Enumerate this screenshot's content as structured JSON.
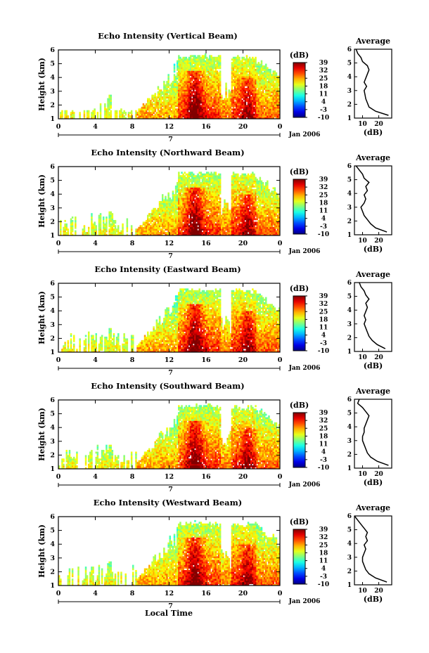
{
  "figure": {
    "y_axis_label": "Height (km)",
    "x_axis_label": "Local Time",
    "date_label": "Jan 2006",
    "day_label": "7",
    "colorbar_unit": "(dB)",
    "average_title": "Average",
    "average_xlabel": "(dB)"
  },
  "chart_data": [
    {
      "type": "heatmap",
      "title": "Echo Intensity (Vertical Beam)",
      "x_ticks": [
        "0",
        "4",
        "8",
        "12",
        "16",
        "20",
        "0"
      ],
      "x_range": [
        0,
        24
      ],
      "y_ticks": [
        "1",
        "2",
        "3",
        "4",
        "5",
        "6"
      ],
      "ylim": [
        1,
        6
      ],
      "colorbar_ticks": [
        "-10",
        "-3",
        "4",
        "11",
        "18",
        "25",
        "32",
        "39"
      ],
      "average_profile": {
        "xlim": [
          5,
          28
        ],
        "x_ticks": [
          "10",
          "20"
        ],
        "height_km": [
          1.2,
          1.5,
          1.8,
          2.1,
          2.4,
          2.7,
          3.0,
          3.3,
          3.6,
          3.9,
          4.2,
          4.5,
          4.8,
          5.1,
          5.4,
          5.7,
          6.0
        ],
        "avg_db": [
          26,
          18,
          14,
          13,
          12,
          11.5,
          11,
          12.5,
          11,
          12,
          13,
          14,
          13,
          10,
          9,
          7,
          6
        ]
      }
    },
    {
      "type": "heatmap",
      "title": "Echo Intensity (Northward Beam)",
      "x_ticks": [
        "0",
        "4",
        "8",
        "12",
        "16",
        "20",
        "0"
      ],
      "x_range": [
        0,
        24
      ],
      "y_ticks": [
        "1",
        "2",
        "3",
        "4",
        "5",
        "6"
      ],
      "ylim": [
        1,
        6
      ],
      "colorbar_ticks": [
        "-10",
        "-3",
        "4",
        "11",
        "18",
        "25",
        "32",
        "39"
      ],
      "average_profile": {
        "xlim": [
          5,
          28
        ],
        "x_ticks": [
          "10",
          "20"
        ],
        "height_km": [
          1.2,
          1.5,
          1.8,
          2.1,
          2.4,
          2.7,
          3.0,
          3.3,
          3.6,
          3.9,
          4.2,
          4.5,
          4.8,
          5.1,
          5.4,
          5.7,
          6.0
        ],
        "avg_db": [
          25,
          18,
          15,
          13,
          11,
          10,
          9,
          11,
          12,
          11,
          13,
          12,
          14,
          11,
          10,
          8,
          6
        ]
      }
    },
    {
      "type": "heatmap",
      "title": "Echo Intensity (Eastward Beam)",
      "x_ticks": [
        "0",
        "4",
        "8",
        "12",
        "16",
        "20",
        "0"
      ],
      "x_range": [
        0,
        24
      ],
      "y_ticks": [
        "1",
        "2",
        "3",
        "4",
        "5",
        "6"
      ],
      "ylim": [
        1,
        6
      ],
      "colorbar_ticks": [
        "-10",
        "-3",
        "4",
        "11",
        "18",
        "25",
        "32",
        "39"
      ],
      "average_profile": {
        "xlim": [
          5,
          28
        ],
        "x_ticks": [
          "10",
          "20"
        ],
        "height_km": [
          1.2,
          1.5,
          1.8,
          2.1,
          2.4,
          2.7,
          3.0,
          3.3,
          3.6,
          3.9,
          4.2,
          4.5,
          4.8,
          5.1,
          5.4,
          5.7,
          6.0
        ],
        "avg_db": [
          24,
          19,
          16,
          14,
          13,
          12,
          11,
          12,
          11,
          12,
          13,
          12,
          14,
          12,
          11,
          9,
          8
        ]
      }
    },
    {
      "type": "heatmap",
      "title": "Echo Intensity (Southward Beam)",
      "x_ticks": [
        "0",
        "4",
        "8",
        "12",
        "16",
        "20",
        "0"
      ],
      "x_range": [
        0,
        24
      ],
      "y_ticks": [
        "1",
        "2",
        "3",
        "4",
        "5",
        "6"
      ],
      "ylim": [
        1,
        6
      ],
      "colorbar_ticks": [
        "-10",
        "-3",
        "4",
        "11",
        "18",
        "25",
        "32",
        "39"
      ],
      "average_profile": {
        "xlim": [
          5,
          28
        ],
        "x_ticks": [
          "10",
          "20"
        ],
        "height_km": [
          1.2,
          1.5,
          1.8,
          2.1,
          2.4,
          2.7,
          3.0,
          3.3,
          3.6,
          3.9,
          4.2,
          4.5,
          4.8,
          5.1,
          5.4,
          5.7,
          6.0
        ],
        "avg_db": [
          26,
          19,
          15,
          13,
          12,
          11,
          10,
          10,
          11,
          11,
          12,
          13,
          14,
          12,
          10,
          7,
          8
        ]
      }
    },
    {
      "type": "heatmap",
      "title": "Echo Intensity (Westward Beam)",
      "x_ticks": [
        "0",
        "4",
        "8",
        "12",
        "16",
        "20",
        "0"
      ],
      "x_range": [
        0,
        24
      ],
      "y_ticks": [
        "1",
        "2",
        "3",
        "4",
        "5",
        "6"
      ],
      "ylim": [
        1,
        6
      ],
      "colorbar_ticks": [
        "-10",
        "-3",
        "4",
        "11",
        "18",
        "25",
        "32",
        "39"
      ],
      "average_profile": {
        "xlim": [
          5,
          28
        ],
        "x_ticks": [
          "10",
          "20"
        ],
        "height_km": [
          1.2,
          1.5,
          1.8,
          2.1,
          2.4,
          2.7,
          3.0,
          3.3,
          3.6,
          3.9,
          4.2,
          4.5,
          4.8,
          5.1,
          5.4,
          5.7,
          6.0
        ],
        "avg_db": [
          25,
          18,
          14,
          12,
          11,
          10,
          10,
          11,
          12,
          11,
          13,
          12,
          13,
          11,
          9,
          7,
          5
        ]
      }
    }
  ]
}
